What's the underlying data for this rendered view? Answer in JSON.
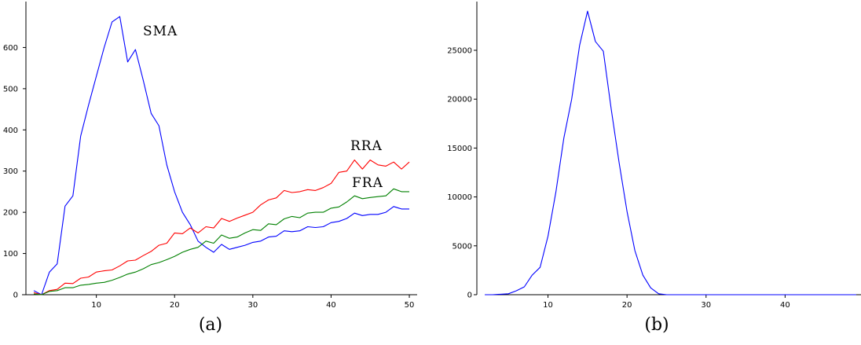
{
  "chart_data": [
    {
      "type": "line",
      "caption": "(a)",
      "xlim": [
        1,
        51
      ],
      "ylim": [
        0,
        700
      ],
      "xticks": [
        10,
        20,
        30,
        40,
        50
      ],
      "yticks": [
        0,
        100,
        200,
        300,
        400,
        500,
        600
      ],
      "grid": false,
      "x": [
        2,
        3,
        4,
        5,
        6,
        7,
        8,
        9,
        10,
        11,
        12,
        13,
        14,
        15,
        16,
        17,
        18,
        19,
        20,
        21,
        22,
        23,
        24,
        25,
        26,
        27,
        28,
        29,
        30,
        31,
        32,
        33,
        34,
        35,
        36,
        37,
        38,
        39,
        40,
        41,
        42,
        43,
        44,
        45,
        46,
        47,
        48,
        49,
        50
      ],
      "series": [
        {
          "name": "SMA",
          "color": "#0000ff",
          "values": [
            10,
            0,
            55,
            75,
            215,
            240,
            385,
            460,
            530,
            600,
            662,
            675,
            565,
            595,
            520,
            440,
            410,
            315,
            250,
            200,
            170,
            130,
            115,
            103,
            122,
            110,
            115,
            120,
            127,
            130,
            140,
            142,
            155,
            153,
            155,
            165,
            163,
            165,
            175,
            178,
            185,
            198,
            192,
            195,
            195,
            200,
            214,
            208,
            208
          ]
        },
        {
          "name": "RRA",
          "color": "#ff0000",
          "values": [
            5,
            0,
            10,
            13,
            28,
            27,
            40,
            43,
            55,
            58,
            60,
            70,
            82,
            84,
            95,
            105,
            120,
            125,
            150,
            148,
            162,
            150,
            165,
            162,
            185,
            178,
            186,
            193,
            200,
            218,
            230,
            235,
            253,
            248,
            250,
            255,
            253,
            260,
            270,
            297,
            300,
            327,
            305,
            327,
            315,
            312,
            322,
            305,
            322
          ]
        },
        {
          "name": "FRA",
          "color": "#008000",
          "values": [
            2,
            0,
            8,
            10,
            17,
            17,
            23,
            25,
            28,
            30,
            35,
            42,
            50,
            55,
            63,
            73,
            78,
            85,
            93,
            103,
            110,
            115,
            130,
            125,
            145,
            137,
            140,
            150,
            158,
            156,
            172,
            170,
            184,
            190,
            187,
            198,
            200,
            200,
            210,
            213,
            225,
            240,
            233,
            236,
            238,
            240,
            257,
            250,
            250
          ]
        }
      ]
    },
    {
      "type": "line",
      "caption": "(b)",
      "xlim": [
        1,
        50
      ],
      "ylim": [
        0,
        29500
      ],
      "xticks": [
        10,
        20,
        30,
        40
      ],
      "yticks": [
        0,
        5000,
        10000,
        15000,
        20000,
        25000
      ],
      "grid": false,
      "x": [
        2,
        3,
        4,
        5,
        6,
        7,
        8,
        9,
        10,
        11,
        12,
        13,
        14,
        15,
        16,
        17,
        18,
        19,
        20,
        21,
        22,
        23,
        24,
        25,
        26,
        27,
        28,
        29,
        30,
        31,
        32,
        33,
        34,
        35,
        36,
        37,
        38,
        39,
        40,
        41,
        42,
        43,
        44,
        45,
        46,
        47,
        48,
        49
      ],
      "series": [
        {
          "color": "#0000ff",
          "values": [
            0,
            0,
            50,
            100,
            400,
            800,
            2000,
            2800,
            6000,
            10500,
            16000,
            20000,
            25500,
            29000,
            25900,
            24900,
            19000,
            13500,
            8500,
            4500,
            2000,
            700,
            100,
            0,
            0,
            0,
            0,
            0,
            0,
            0,
            0,
            0,
            0,
            0,
            0,
            0,
            0,
            0,
            0,
            0,
            0,
            0,
            0,
            0,
            0,
            0,
            0,
            0
          ]
        }
      ]
    }
  ]
}
